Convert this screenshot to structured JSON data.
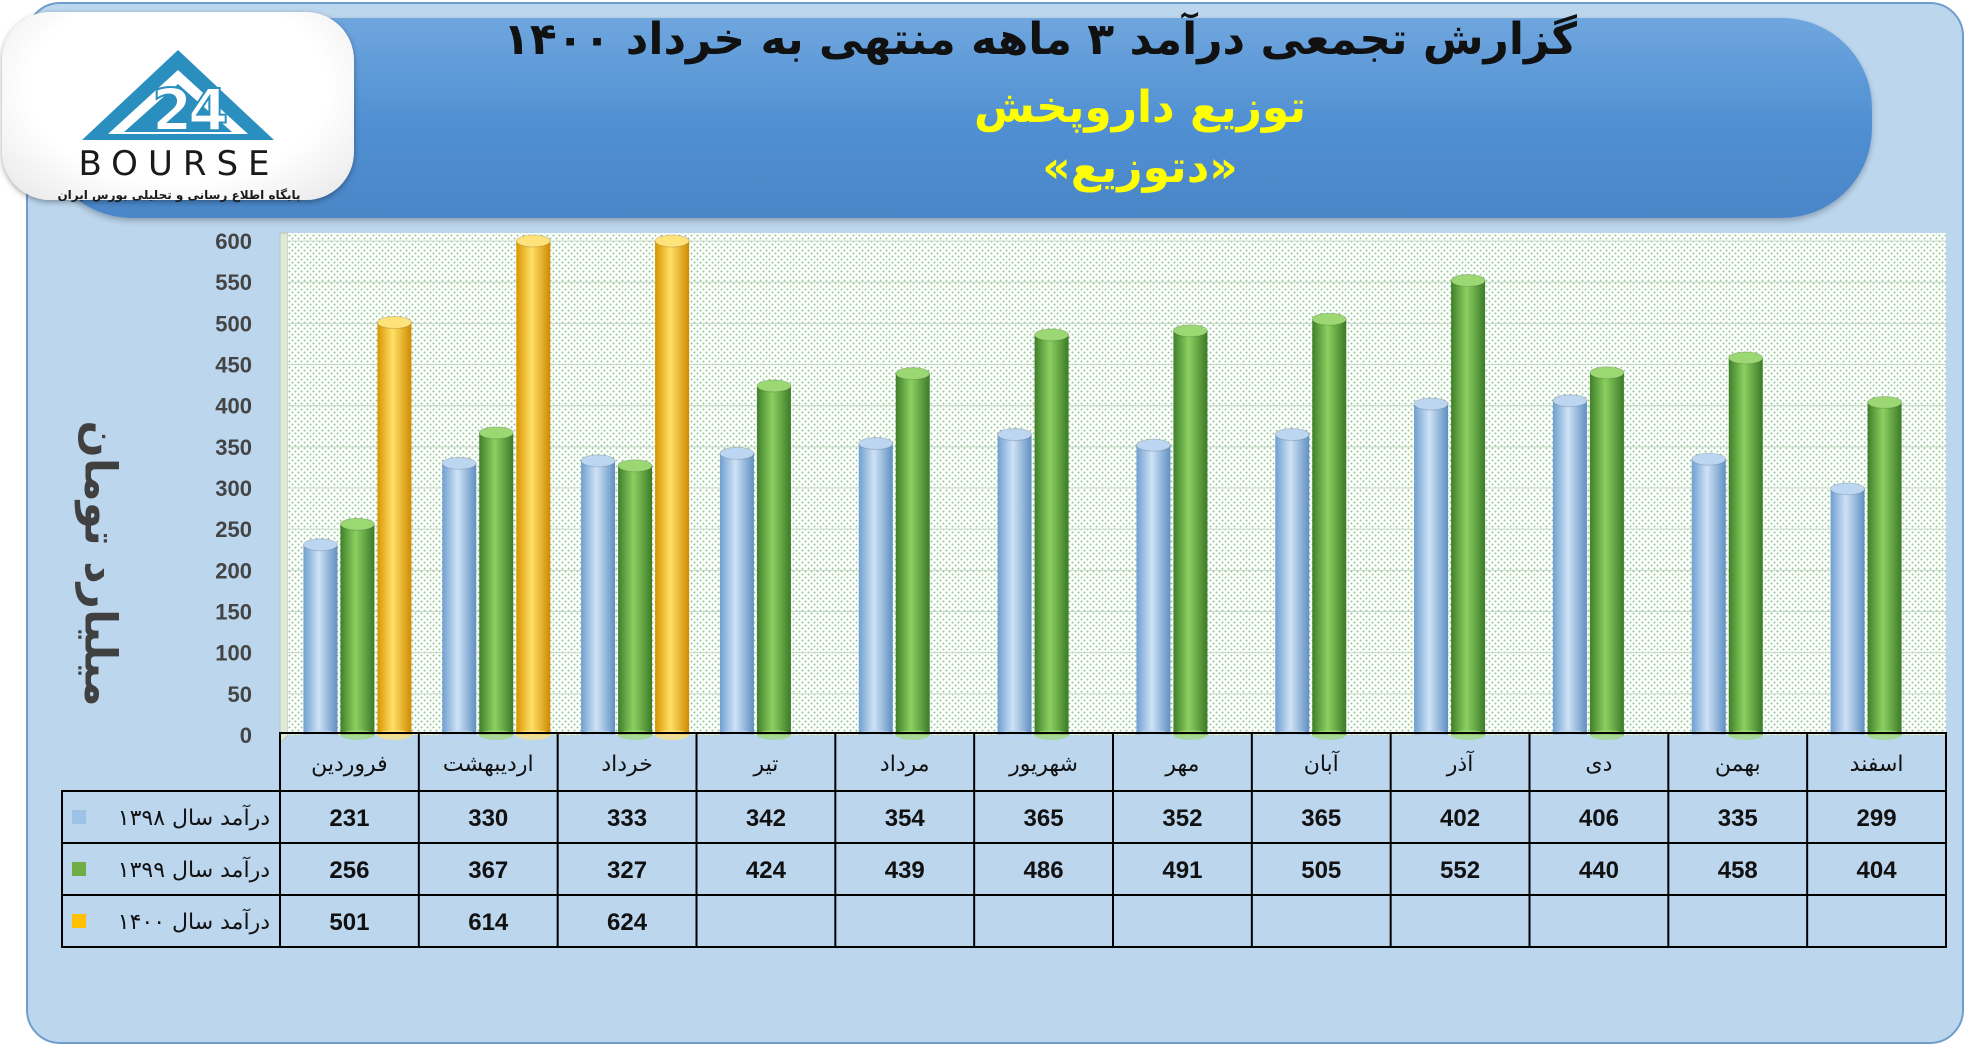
{
  "header": {
    "title": "گزارش تجمعی درآمد ۳ ماهه منتهی به خرداد ۱۴۰۰",
    "subtitle": "توزیع داروپخش",
    "company": "«دتوزیع»"
  },
  "logo": {
    "text": "BOURSE",
    "tagline": "پایگاه اطلاع رسانی و تحلیلی بورس ایران",
    "mark": "24"
  },
  "colors": {
    "series_1398": "#9dc3e6",
    "series_1399": "#70ad47",
    "series_1400": "#ffc000"
  },
  "chart_data": {
    "type": "bar",
    "ylabel": "میلیارد تومان",
    "ylim": [
      0,
      600
    ],
    "yticks": [
      0,
      50,
      100,
      150,
      200,
      250,
      300,
      350,
      400,
      450,
      500,
      550,
      600
    ],
    "categories": [
      "فروردین",
      "اردیبهشت",
      "خرداد",
      "تیر",
      "مرداد",
      "شهریور",
      "مهر",
      "آبان",
      "آذر",
      "دی",
      "بهمن",
      "اسفند"
    ],
    "series": [
      {
        "name": "درآمد سال ۱۳۹۸",
        "values": [
          231,
          330,
          333,
          342,
          354,
          365,
          352,
          365,
          402,
          406,
          335,
          299
        ]
      },
      {
        "name": "درآمد سال ۱۳۹۹",
        "values": [
          256,
          367,
          327,
          424,
          439,
          486,
          491,
          505,
          552,
          440,
          458,
          404
        ]
      },
      {
        "name": "درآمد سال ۱۴۰۰",
        "values": [
          501,
          614,
          624,
          null,
          null,
          null,
          null,
          null,
          null,
          null,
          null,
          null
        ]
      }
    ],
    "legend": "data-table",
    "grid": true
  }
}
